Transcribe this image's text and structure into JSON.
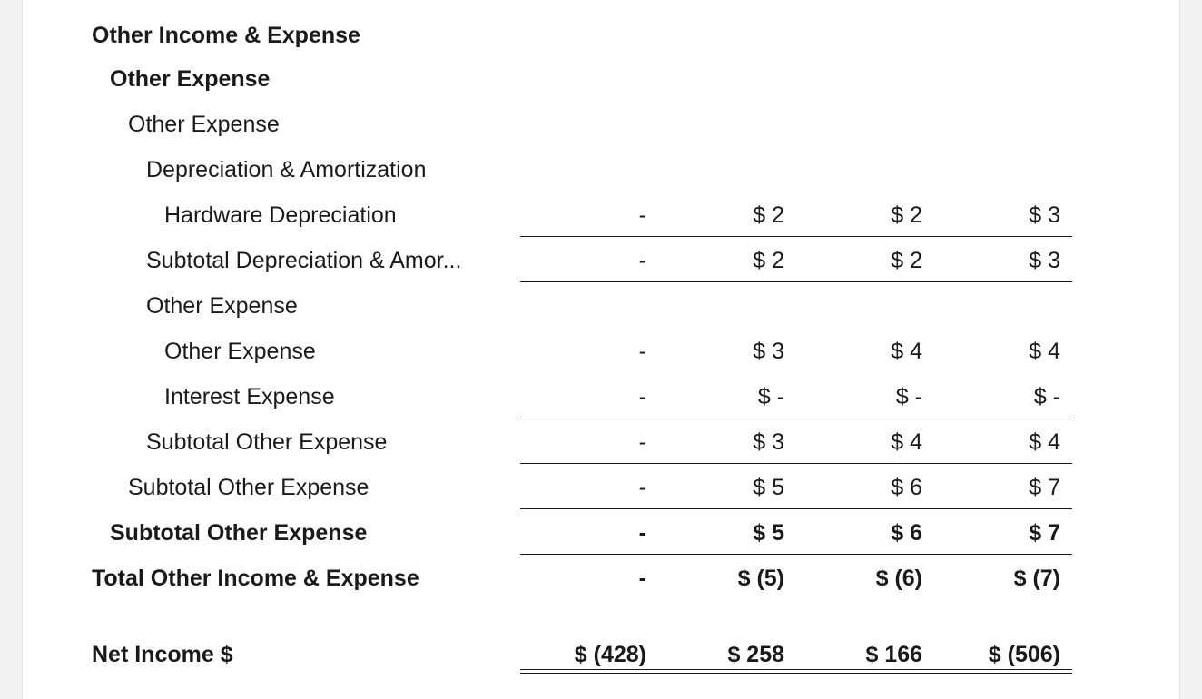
{
  "rows": [
    {
      "label": "Other Income & Expense",
      "indent": 0,
      "bold": true,
      "values": null
    },
    {
      "label": "Other Expense",
      "indent": 1,
      "bold": true,
      "values": null
    },
    {
      "label": "Other Expense",
      "indent": 2,
      "bold": false,
      "values": null
    },
    {
      "label": "Depreciation & Amortization",
      "indent": 3,
      "bold": false,
      "values": null
    },
    {
      "label": "Hardware Depreciation",
      "indent": 4,
      "bold": false,
      "values": [
        "-",
        "$ 2",
        "$ 2",
        "$ 3"
      ]
    },
    {
      "label": "Subtotal Depreciation & Amor...",
      "indent": 3,
      "bold": false,
      "values": [
        "-",
        "$ 2",
        "$ 2",
        "$ 3"
      ]
    },
    {
      "label": "Other Expense",
      "indent": 3,
      "bold": false,
      "values": null
    },
    {
      "label": "Other Expense",
      "indent": 4,
      "bold": false,
      "values": [
        "-",
        "$ 3",
        "$ 4",
        "$ 4"
      ]
    },
    {
      "label": "Interest Expense",
      "indent": 4,
      "bold": false,
      "values": [
        "-",
        "$ -",
        "$ -",
        "$ -"
      ]
    },
    {
      "label": "Subtotal Other Expense",
      "indent": 3,
      "bold": false,
      "values": [
        "-",
        "$ 3",
        "$ 4",
        "$ 4"
      ]
    },
    {
      "label": "Subtotal Other Expense",
      "indent": 2,
      "bold": false,
      "values": [
        "-",
        "$ 5",
        "$ 6",
        "$ 7"
      ]
    },
    {
      "label": "Subtotal Other Expense",
      "indent": 1,
      "bold": true,
      "values": [
        "-",
        "$ 5",
        "$ 6",
        "$ 7"
      ]
    },
    {
      "label": "Total Other Income & Expense",
      "indent": 0,
      "bold": true,
      "values": [
        "-",
        "$ (5)",
        "$ (6)",
        "$ (7)"
      ]
    }
  ],
  "net_income": {
    "label": "Net Income $",
    "values": [
      "$ (428)",
      "$ 258",
      "$ 166",
      "$ (506)"
    ]
  }
}
